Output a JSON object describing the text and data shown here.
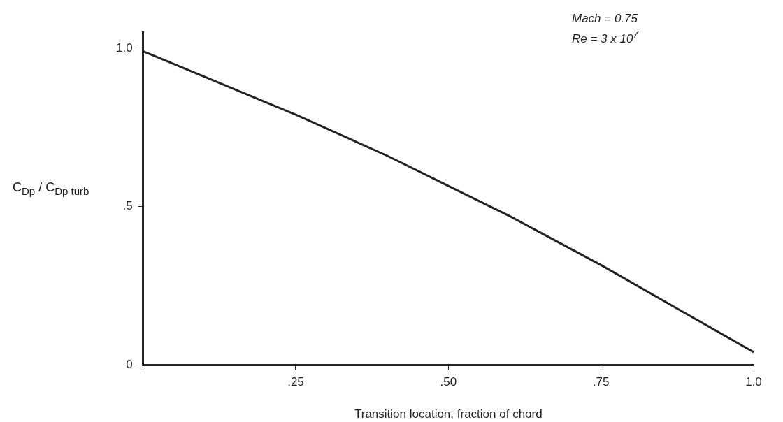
{
  "chart_data": {
    "type": "line",
    "xlabel": "Transition location, fraction of chord",
    "ylabel": "C$_{Dp}$ / C$_{Dp turb}$",
    "annotations": [
      "Mach = 0.75",
      "Re = 3 x 10$^{7}$"
    ],
    "x": [
      0,
      0.1,
      0.25,
      0.4,
      0.5,
      0.6,
      0.75,
      0.9,
      1.0
    ],
    "series": [
      {
        "color": "#222222",
        "values": [
          0.99,
          0.91,
          0.79,
          0.66,
          0.565,
          0.47,
          0.315,
          0.15,
          0.04
        ]
      }
    ],
    "xlim": [
      0,
      1
    ],
    "ylim": [
      0,
      1.05
    ],
    "xticks": [
      {
        "value": 0,
        "label": null
      },
      {
        "value": 0.25,
        "label": ".25"
      },
      {
        "value": 0.5,
        "label": ".50"
      },
      {
        "value": 0.75,
        "label": ".75"
      },
      {
        "value": 1,
        "label": "1.0"
      }
    ],
    "yticks": [
      0,
      {
        "value": 0.5,
        "label": ".5"
      },
      {
        "value": 1,
        "label": "1.0"
      }
    ],
    "grid": false,
    "legend": false,
    "marker": "none",
    "line_style": "solid"
  }
}
